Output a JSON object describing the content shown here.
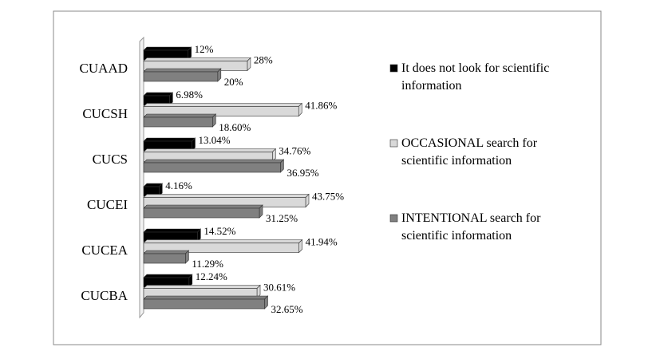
{
  "chart_data": {
    "type": "bar",
    "orientation": "horizontal",
    "categories": [
      "CUAAD",
      "CUCSH",
      "CUCS",
      "CUCEI",
      "CUCEA",
      "CUCBA"
    ],
    "series": [
      {
        "name": "It does not look for scientific information",
        "color": "#000000",
        "values": [
          12,
          6.98,
          13.04,
          4.16,
          14.52,
          12.24
        ],
        "value_labels": [
          "12%",
          "6.98%",
          "13.04%",
          "4.16%",
          "14.52%",
          "12.24%"
        ]
      },
      {
        "name": "OCCASIONAL search for scientific information",
        "color": "#d9d9d9",
        "values": [
          28,
          41.86,
          34.76,
          43.75,
          41.94,
          30.61
        ],
        "value_labels": [
          "28%",
          "41.86%",
          "34.76%",
          "43.75%",
          "41.94%",
          "30.61%"
        ]
      },
      {
        "name": "INTENTIONAL search for scientific information",
        "color": "#808080",
        "values": [
          20,
          18.6,
          36.95,
          31.25,
          11.29,
          32.65
        ],
        "value_labels": [
          "20%",
          "18.60%",
          "36.95%",
          "31.25%",
          "11.29%",
          "32.65%"
        ]
      }
    ],
    "xlim": [
      0,
      50
    ],
    "legend": "right"
  }
}
